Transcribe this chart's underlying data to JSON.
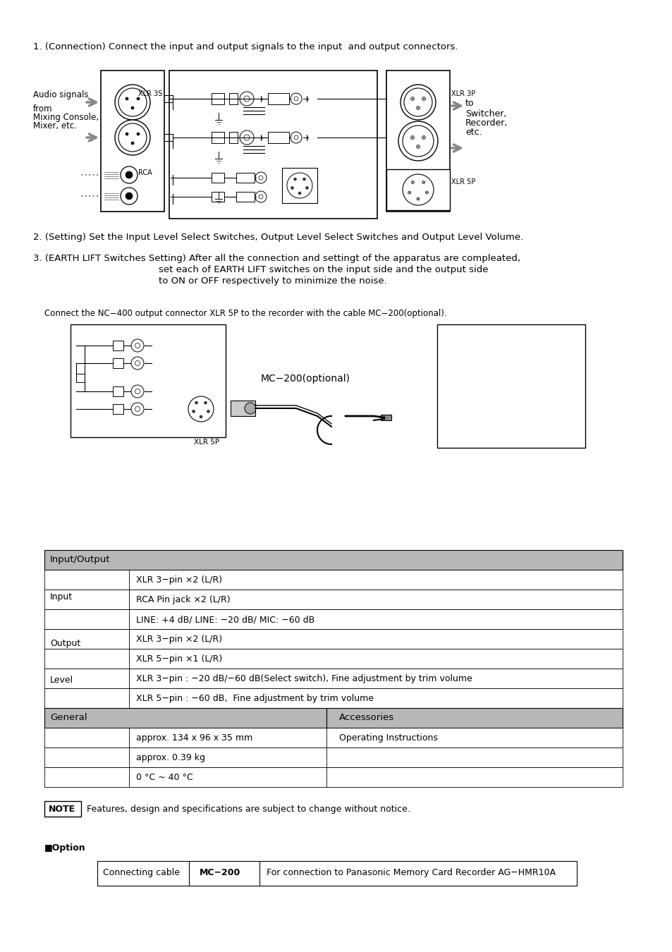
{
  "bg_color": "#ffffff",
  "text_color": "#000000",
  "gray_header": "#b0b0b0",
  "light_gray": "#d0d0d0",
  "section1_title": "1. (Connection) Connect the input and output signals to the input  and output connectors.",
  "section2_title": "2. (Setting) Set the Input Level Select Switches, Output Level Select Switches and Output Level Volume.",
  "section3_title": "3. (EARTH LIFT Switches Setting) After all the connection and settingt of the apparatus are compleated,",
  "section3_line2": "set each of EARTH LIFT switches on the input side and the output side",
  "section3_line3": "to ON or OFF respectively to minimize the noise.",
  "mc200_caption": "Connect the NC−400 output connector XLR 5P to the recorder with the cable MC−200(optional).",
  "mc200_label": "MC−200(optional)",
  "xlr5p_label": "XLR 5P",
  "audio_label1": "Audio signals",
  "audio_label2": "from",
  "audio_label3": "Mixing Console,",
  "audio_label4": "Mixer, etc.",
  "xlr3s_label": "XLR 3S",
  "rca_label": "RCA",
  "xlr3p_label": "XLR 3P",
  "xlr5p_label2": "XLR 5P",
  "to_label": "to",
  "switcher_label": "Switcher,",
  "recorder_label": "Recorder,",
  "etc_label": "etc.",
  "table_header": "Input/Output",
  "table_rows": [
    [
      "",
      "XLR 3−pin ×2 (L/R)",
      ""
    ],
    [
      "",
      "RCA Pin jack ×2 (L/R)",
      ""
    ],
    [
      "",
      "LINE: +4 dB/ LINE: −20 dB/ MIC: −60 dB",
      ""
    ],
    [
      "",
      "XLR 3−pin ×2 (L/R)",
      ""
    ],
    [
      "",
      "XLR 5−pin ×1 (L/R)",
      ""
    ],
    [
      "",
      "XLR 3−pin : −20 dB/−60 dB(Select switch), Fine adjustment by trim volume",
      ""
    ],
    [
      "",
      "XLR 5−pin : −60 dB,  Fine adjustment by trim volume",
      ""
    ]
  ],
  "general_label": "General",
  "accessories_label": "Accessories",
  "general_rows": [
    [
      "",
      "approx. 134 x 96 x 35 mm",
      "Operating Instructions"
    ],
    [
      "",
      "approx. 0.39 kg",
      ""
    ],
    [
      "",
      "0 °C ∼ 40 °C",
      ""
    ]
  ],
  "note_text": "Features, design and specifications are subject to change without notice.",
  "option_label": "■Option",
  "option_col1": "Connecting cable",
  "option_col2": "MC−200",
  "option_col3": "For connection to Panasonic Memory Card Recorder AG−HMR10A"
}
